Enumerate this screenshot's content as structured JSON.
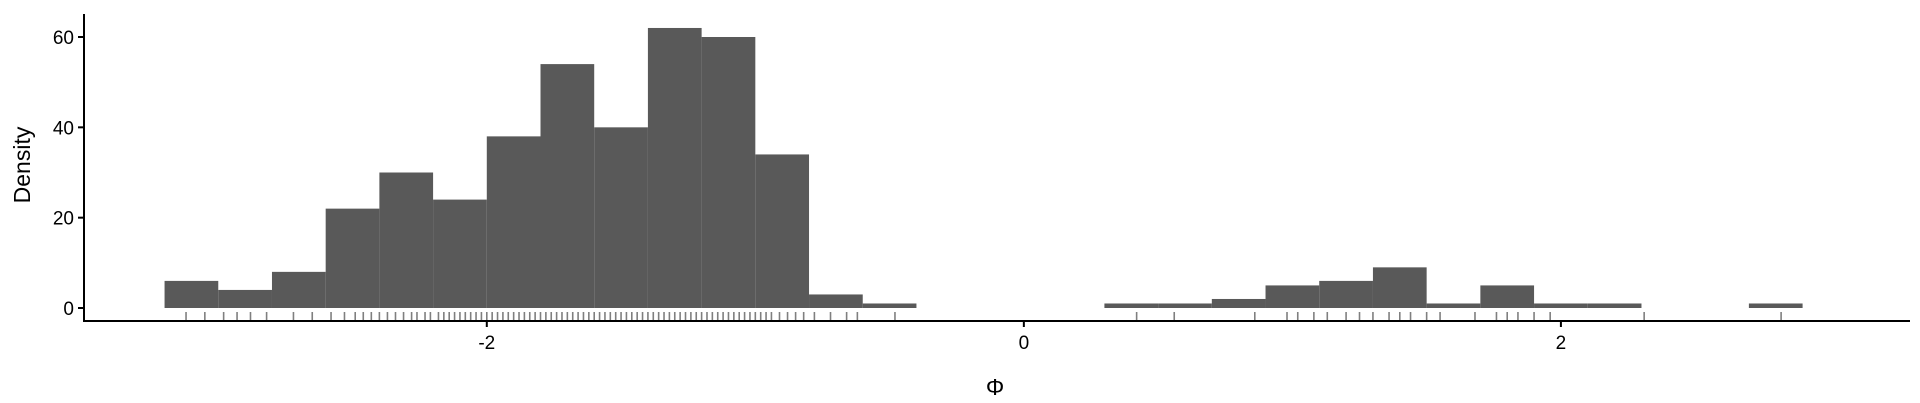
{
  "chart_data": {
    "type": "bar",
    "title": "",
    "xlabel": "Φ",
    "ylabel": "Density",
    "bar_color": "#595959",
    "rug_color": "#000000",
    "axis_color": "#000000",
    "grid": false,
    "legend": "none",
    "xlim": [
      -3.5,
      3.3
    ],
    "ylim": [
      0,
      65
    ],
    "x_ticks": [
      -2,
      0,
      2
    ],
    "x_tick_labels": [
      "-2",
      "0",
      "2"
    ],
    "y_ticks": [
      0,
      20,
      40,
      60
    ],
    "y_tick_labels": [
      "0",
      "20",
      "40",
      "60"
    ],
    "bins": [
      {
        "x0": -3.2,
        "x1": -3.0,
        "y": 6
      },
      {
        "x0": -3.0,
        "x1": -2.8,
        "y": 4
      },
      {
        "x0": -2.8,
        "x1": -2.6,
        "y": 8
      },
      {
        "x0": -2.6,
        "x1": -2.4,
        "y": 22
      },
      {
        "x0": -2.4,
        "x1": -2.2,
        "y": 30
      },
      {
        "x0": -2.2,
        "x1": -2.0,
        "y": 24
      },
      {
        "x0": -2.0,
        "x1": -1.8,
        "y": 38
      },
      {
        "x0": -1.8,
        "x1": -1.6,
        "y": 54
      },
      {
        "x0": -1.6,
        "x1": -1.4,
        "y": 40
      },
      {
        "x0": -1.4,
        "x1": -1.2,
        "y": 62
      },
      {
        "x0": -1.2,
        "x1": -1.0,
        "y": 60
      },
      {
        "x0": -1.0,
        "x1": -0.8,
        "y": 34
      },
      {
        "x0": -0.8,
        "x1": -0.6,
        "y": 3
      },
      {
        "x0": -0.6,
        "x1": -0.4,
        "y": 1
      },
      {
        "x0": 0.3,
        "x1": 0.5,
        "y": 1
      },
      {
        "x0": 0.5,
        "x1": 0.7,
        "y": 1
      },
      {
        "x0": 0.7,
        "x1": 0.9,
        "y": 2
      },
      {
        "x0": 0.9,
        "x1": 1.1,
        "y": 5
      },
      {
        "x0": 1.1,
        "x1": 1.3,
        "y": 6
      },
      {
        "x0": 1.3,
        "x1": 1.5,
        "y": 9
      },
      {
        "x0": 1.5,
        "x1": 1.7,
        "y": 1
      },
      {
        "x0": 1.7,
        "x1": 1.9,
        "y": 5
      },
      {
        "x0": 1.9,
        "x1": 2.1,
        "y": 1
      },
      {
        "x0": 2.1,
        "x1": 2.3,
        "y": 1
      },
      {
        "x0": 2.7,
        "x1": 2.9,
        "y": 1
      }
    ],
    "rug": [
      -3.12,
      -3.05,
      -2.98,
      -2.93,
      -2.88,
      -2.82,
      -2.72,
      -2.65,
      -2.58,
      -2.53,
      -2.49,
      -2.46,
      -2.43,
      -2.4,
      -2.37,
      -2.34,
      -2.31,
      -2.28,
      -2.26,
      -2.23,
      -2.21,
      -2.18,
      -2.16,
      -2.14,
      -2.12,
      -2.1,
      -2.08,
      -2.06,
      -2.04,
      -2.02,
      -2.0,
      -1.98,
      -1.96,
      -1.94,
      -1.92,
      -1.9,
      -1.88,
      -1.86,
      -1.84,
      -1.82,
      -1.8,
      -1.78,
      -1.76,
      -1.74,
      -1.72,
      -1.7,
      -1.68,
      -1.66,
      -1.64,
      -1.62,
      -1.6,
      -1.58,
      -1.56,
      -1.54,
      -1.52,
      -1.5,
      -1.48,
      -1.46,
      -1.44,
      -1.42,
      -1.4,
      -1.38,
      -1.36,
      -1.34,
      -1.32,
      -1.3,
      -1.28,
      -1.26,
      -1.24,
      -1.22,
      -1.2,
      -1.18,
      -1.16,
      -1.14,
      -1.12,
      -1.1,
      -1.08,
      -1.06,
      -1.04,
      -1.02,
      -1.0,
      -0.98,
      -0.96,
      -0.94,
      -0.91,
      -0.88,
      -0.85,
      -0.82,
      -0.78,
      -0.72,
      -0.66,
      -0.62,
      -0.48,
      0.42,
      0.56,
      0.86,
      0.98,
      1.02,
      1.08,
      1.13,
      1.2,
      1.25,
      1.3,
      1.36,
      1.4,
      1.44,
      1.5,
      1.55,
      1.68,
      1.76,
      1.8,
      1.84,
      1.9,
      1.96,
      2.31,
      2.82
    ]
  }
}
